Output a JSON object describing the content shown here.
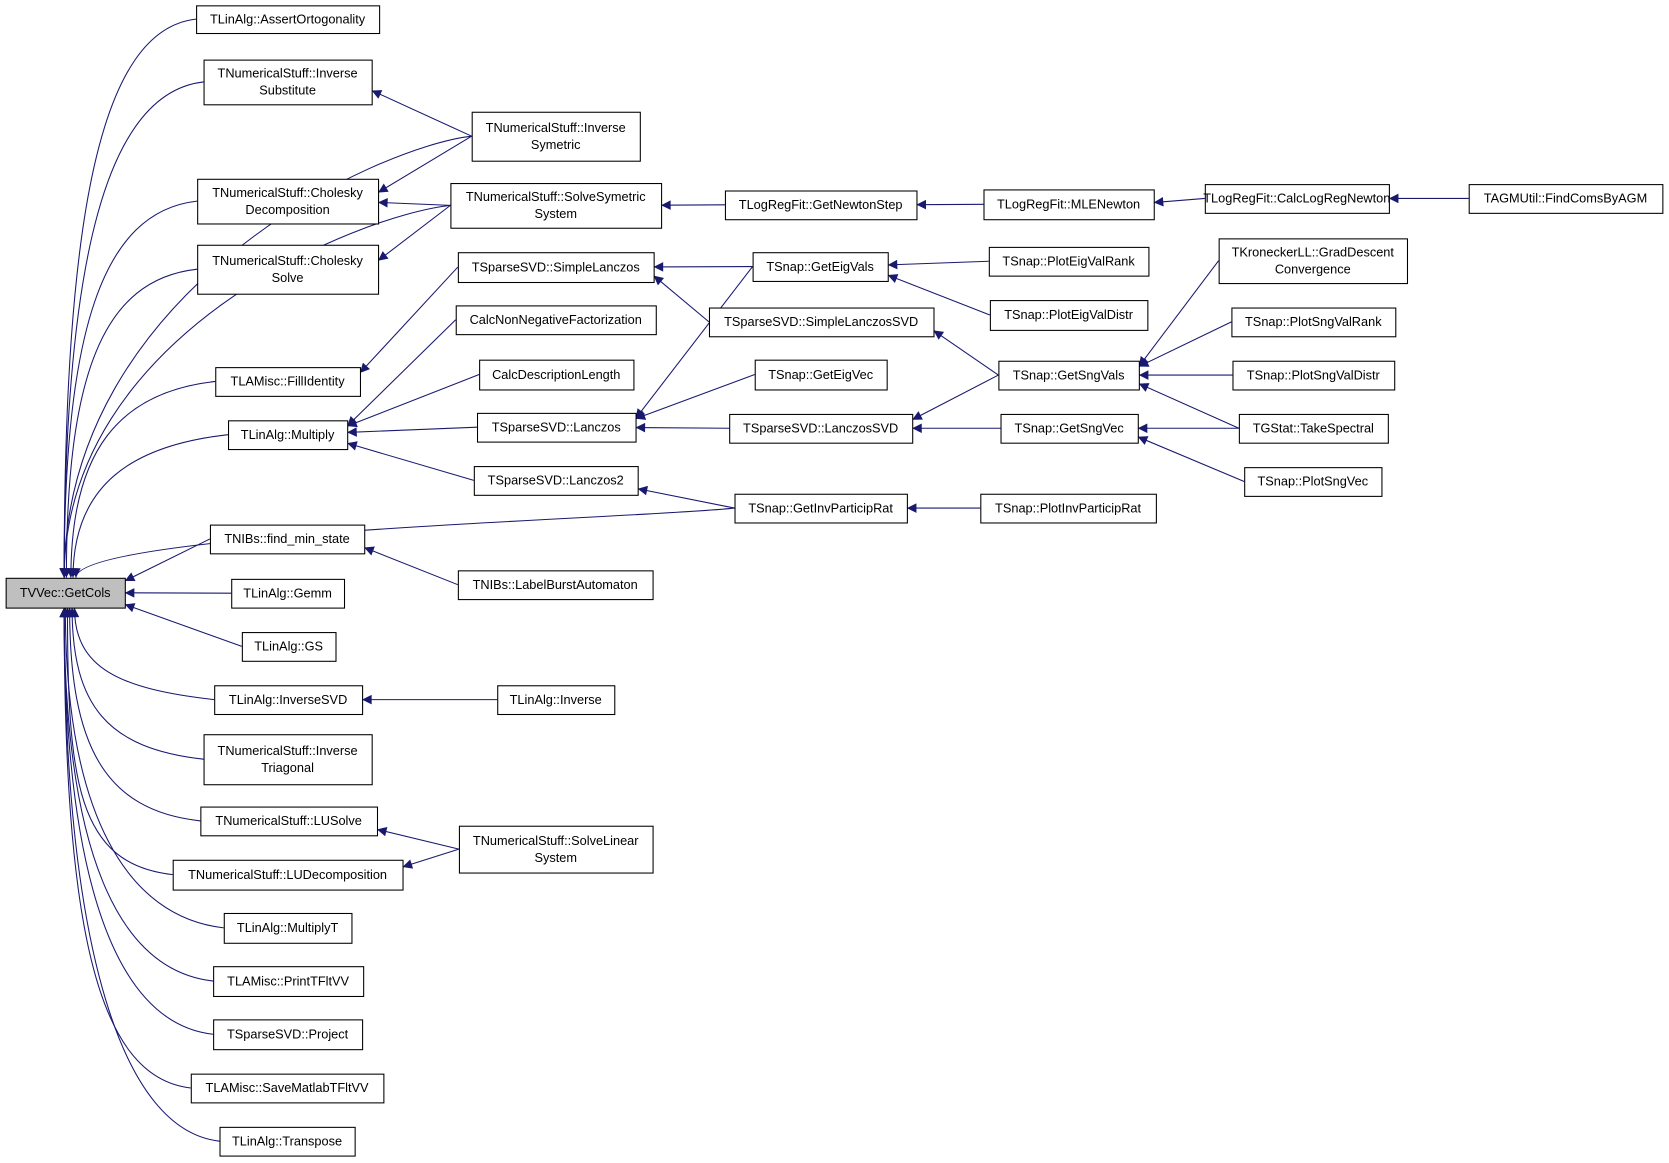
{
  "diagram": {
    "type": "doxygen-caller-graph",
    "edge_color": "#191970",
    "root_fill": "#bfbfbf",
    "nodes": [
      {
        "id": "n0",
        "label": [
          "TVVec::GetCols"
        ],
        "root": true
      },
      {
        "id": "n1",
        "label": [
          "TLinAlg::AssertOrtogonality"
        ]
      },
      {
        "id": "n2",
        "label": [
          "TNumericalStuff::Inverse",
          "Substitute"
        ]
      },
      {
        "id": "n3",
        "label": [
          "TNumericalStuff::Inverse",
          "Symetric"
        ]
      },
      {
        "id": "n4",
        "label": [
          "TNumericalStuff::Cholesky",
          "Decomposition"
        ]
      },
      {
        "id": "n5",
        "label": [
          "TNumericalStuff::Cholesky",
          "Solve"
        ]
      },
      {
        "id": "n6",
        "label": [
          "TNumericalStuff::SolveSymetric",
          "System"
        ]
      },
      {
        "id": "n7",
        "label": [
          "TSparseSVD::SimpleLanczos"
        ]
      },
      {
        "id": "n8",
        "label": [
          "CalcNonNegativeFactorization"
        ]
      },
      {
        "id": "n9",
        "label": [
          "CalcDescriptionLength"
        ]
      },
      {
        "id": "n10",
        "label": [
          "TSparseSVD::Lanczos"
        ]
      },
      {
        "id": "n11",
        "label": [
          "TSparseSVD::Lanczos2"
        ]
      },
      {
        "id": "n12",
        "label": [
          "TLAMisc::FillIdentity"
        ]
      },
      {
        "id": "n13",
        "label": [
          "TLinAlg::Multiply"
        ]
      },
      {
        "id": "n14",
        "label": [
          "TNIBs::find_min_state"
        ]
      },
      {
        "id": "n15",
        "label": [
          "TNIBs::LabelBurstAutomaton"
        ]
      },
      {
        "id": "n16",
        "label": [
          "TLinAlg::Gemm"
        ]
      },
      {
        "id": "n17",
        "label": [
          "TLinAlg::GS"
        ]
      },
      {
        "id": "n18",
        "label": [
          "TLinAlg::InverseSVD"
        ]
      },
      {
        "id": "n19",
        "label": [
          "TLinAlg::Inverse"
        ]
      },
      {
        "id": "n20",
        "label": [
          "TNumericalStuff::Inverse",
          "Triagonal"
        ]
      },
      {
        "id": "n21",
        "label": [
          "TNumericalStuff::LUSolve"
        ]
      },
      {
        "id": "n22",
        "label": [
          "TNumericalStuff::LUDecomposition"
        ]
      },
      {
        "id": "n23",
        "label": [
          "TNumericalStuff::SolveLinear",
          "System"
        ]
      },
      {
        "id": "n24",
        "label": [
          "TLinAlg::MultiplyT"
        ]
      },
      {
        "id": "n25",
        "label": [
          "TLAMisc::PrintTFltVV"
        ]
      },
      {
        "id": "n26",
        "label": [
          "TSparseSVD::Project"
        ]
      },
      {
        "id": "n27",
        "label": [
          "TLAMisc::SaveMatlabTFltVV"
        ]
      },
      {
        "id": "n28",
        "label": [
          "TLinAlg::Transpose"
        ]
      },
      {
        "id": "n29",
        "label": [
          "TLogRegFit::GetNewtonStep"
        ]
      },
      {
        "id": "n30",
        "label": [
          "TLogRegFit::MLENewton"
        ]
      },
      {
        "id": "n31",
        "label": [
          "TLogRegFit::CalcLogRegNewton"
        ]
      },
      {
        "id": "n32",
        "label": [
          "TAGMUtil::FindComsByAGM"
        ]
      },
      {
        "id": "n33",
        "label": [
          "TSnap::GetEigVals"
        ]
      },
      {
        "id": "n34",
        "label": [
          "TSparseSVD::SimpleLanczosSVD"
        ]
      },
      {
        "id": "n35",
        "label": [
          "TSnap::GetEigVec"
        ]
      },
      {
        "id": "n36",
        "label": [
          "TSparseSVD::LanczosSVD"
        ]
      },
      {
        "id": "n37",
        "label": [
          "TSnap::GetInvParticipRat"
        ]
      },
      {
        "id": "n38",
        "label": [
          "TSnap::PlotEigValRank"
        ]
      },
      {
        "id": "n39",
        "label": [
          "TSnap::PlotEigValDistr"
        ]
      },
      {
        "id": "n40",
        "label": [
          "TSnap::GetSngVals"
        ]
      },
      {
        "id": "n41",
        "label": [
          "TSnap::GetSngVec"
        ]
      },
      {
        "id": "n42",
        "label": [
          "TSnap::PlotInvParticipRat"
        ]
      },
      {
        "id": "n43",
        "label": [
          "TKroneckerLL::GradDescent",
          "Convergence"
        ]
      },
      {
        "id": "n44",
        "label": [
          "TSnap::PlotSngValRank"
        ]
      },
      {
        "id": "n45",
        "label": [
          "TSnap::PlotSngValDistr"
        ]
      },
      {
        "id": "n46",
        "label": [
          "TGStat::TakeSpectral"
        ]
      },
      {
        "id": "n47",
        "label": [
          "TSnap::PlotSngVec"
        ]
      }
    ],
    "edges": [
      [
        "n1",
        "n0"
      ],
      [
        "n2",
        "n0"
      ],
      [
        "n3",
        "n0"
      ],
      [
        "n4",
        "n0"
      ],
      [
        "n5",
        "n0"
      ],
      [
        "n6",
        "n0"
      ],
      [
        "n12",
        "n0"
      ],
      [
        "n13",
        "n0"
      ],
      [
        "n37",
        "n0"
      ],
      [
        "n14",
        "n0"
      ],
      [
        "n16",
        "n0"
      ],
      [
        "n17",
        "n0"
      ],
      [
        "n18",
        "n0"
      ],
      [
        "n20",
        "n0"
      ],
      [
        "n21",
        "n0"
      ],
      [
        "n22",
        "n0"
      ],
      [
        "n24",
        "n0"
      ],
      [
        "n25",
        "n0"
      ],
      [
        "n26",
        "n0"
      ],
      [
        "n27",
        "n0"
      ],
      [
        "n28",
        "n0"
      ],
      [
        "n3",
        "n2"
      ],
      [
        "n3",
        "n4"
      ],
      [
        "n6",
        "n4"
      ],
      [
        "n6",
        "n5"
      ],
      [
        "n7",
        "n12"
      ],
      [
        "n8",
        "n13"
      ],
      [
        "n9",
        "n13"
      ],
      [
        "n10",
        "n13"
      ],
      [
        "n11",
        "n13"
      ],
      [
        "n15",
        "n14"
      ],
      [
        "n19",
        "n18"
      ],
      [
        "n23",
        "n21"
      ],
      [
        "n23",
        "n22"
      ],
      [
        "n29",
        "n6"
      ],
      [
        "n30",
        "n29"
      ],
      [
        "n31",
        "n30"
      ],
      [
        "n32",
        "n31"
      ],
      [
        "n33",
        "n7"
      ],
      [
        "n34",
        "n7"
      ],
      [
        "n33",
        "n10"
      ],
      [
        "n35",
        "n10"
      ],
      [
        "n36",
        "n10"
      ],
      [
        "n37",
        "n11"
      ],
      [
        "n38",
        "n33"
      ],
      [
        "n39",
        "n33"
      ],
      [
        "n40",
        "n34"
      ],
      [
        "n40",
        "n36"
      ],
      [
        "n41",
        "n36"
      ],
      [
        "n42",
        "n37"
      ],
      [
        "n43",
        "n40"
      ],
      [
        "n44",
        "n40"
      ],
      [
        "n45",
        "n40"
      ],
      [
        "n46",
        "n40"
      ],
      [
        "n46",
        "n41"
      ],
      [
        "n47",
        "n41"
      ]
    ]
  }
}
